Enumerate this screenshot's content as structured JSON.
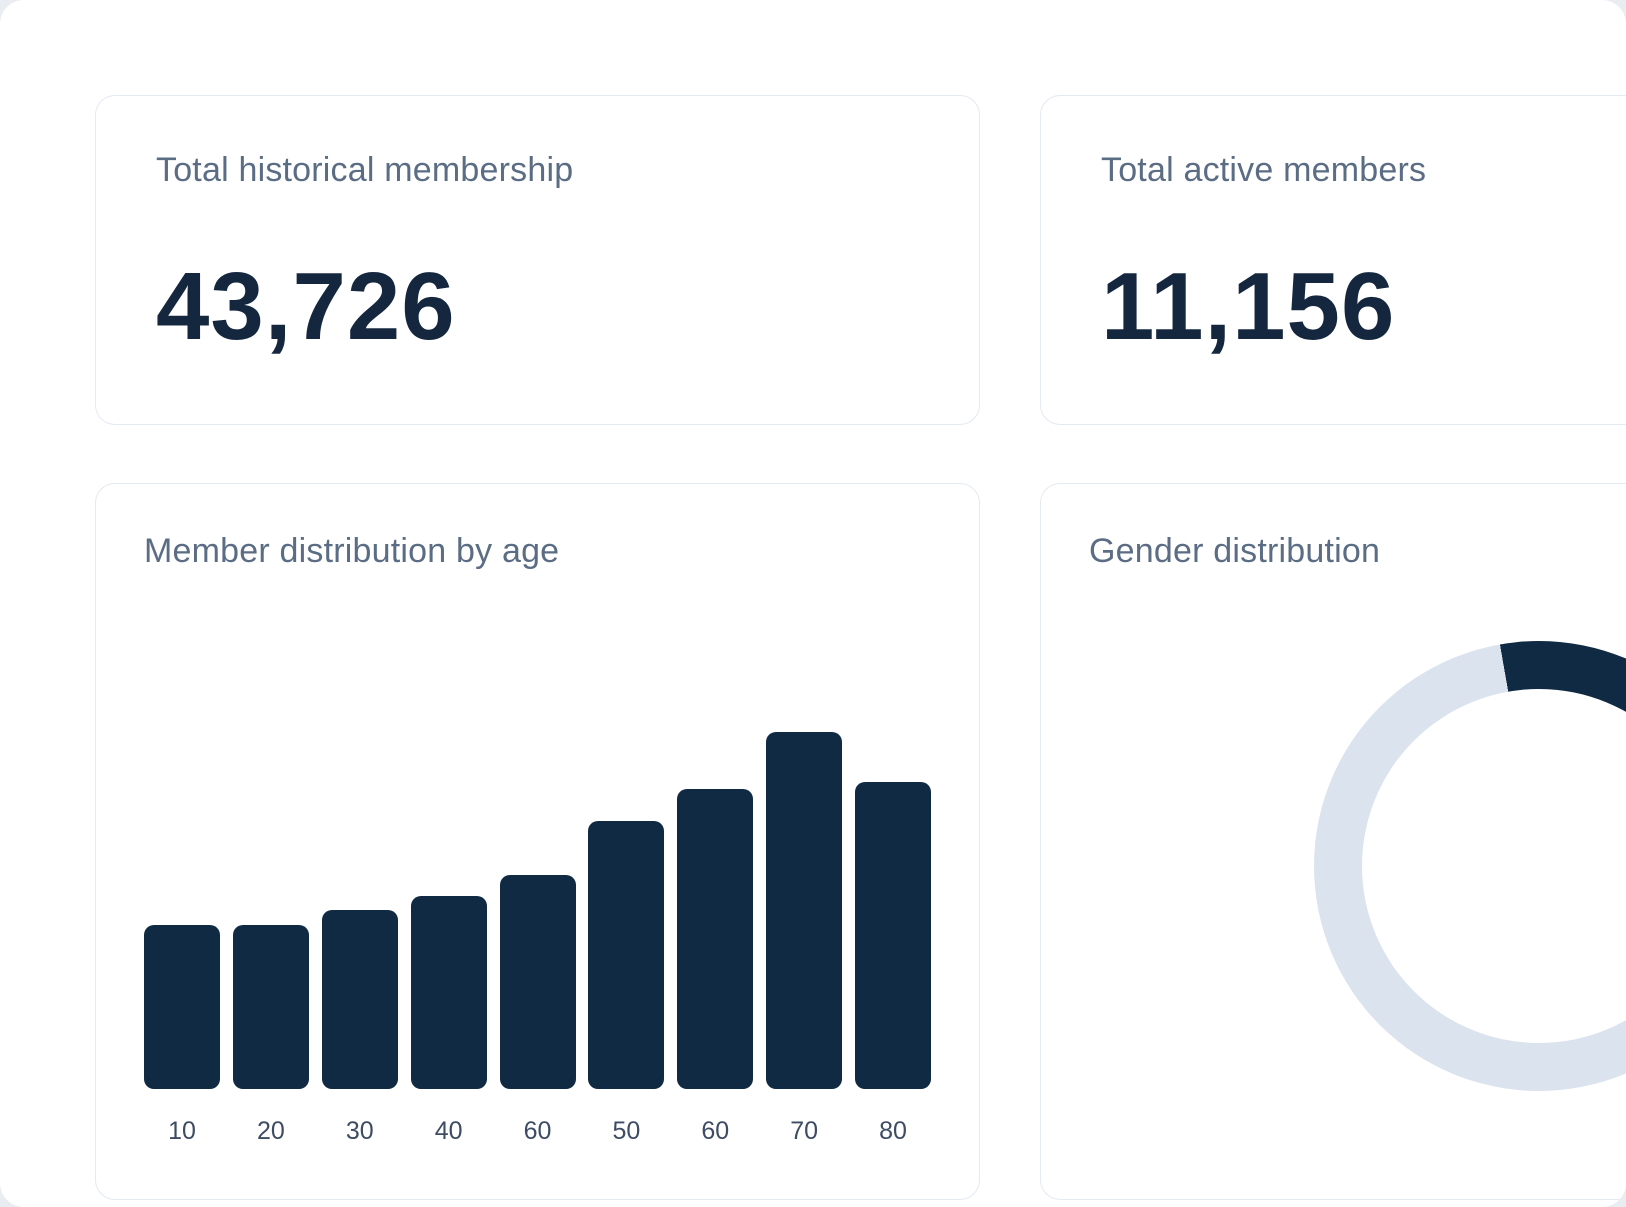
{
  "colors": {
    "navy": "#102a43",
    "title_text": "#5b6d84",
    "card_border": "#e4eaf1",
    "donut_track": "#dbe3ee",
    "axis_label": "#3e4c63"
  },
  "cards": {
    "historical": {
      "title": "Total historical membership",
      "value": "43,726"
    },
    "active": {
      "title": "Total active members",
      "value": "11,156"
    },
    "age": {
      "title": "Member distribution by age"
    },
    "gender": {
      "title": "Gender distribution"
    }
  },
  "chart_data": [
    {
      "type": "bar",
      "title": "Member distribution by age",
      "categories": [
        "10",
        "20",
        "30",
        "40",
        "60",
        "50",
        "60",
        "70",
        "80"
      ],
      "values": [
        46,
        46,
        50,
        54,
        60,
        75,
        84,
        100,
        86
      ],
      "ylim": [
        0,
        100
      ],
      "xlabel": "",
      "ylabel": "",
      "grid": false,
      "legend": "none",
      "bar_color": "#102a43",
      "notes": "no y-axis shown; values are relative heights as % of tallest bar"
    },
    {
      "type": "pie",
      "variant": "donut",
      "title": "Gender distribution",
      "series": [
        {
          "name": "dark-segment",
          "value": 25,
          "color": "#102a43"
        },
        {
          "name": "light-segment",
          "value": 75,
          "color": "#dbe3ee"
        }
      ],
      "legend": "none",
      "start_angle_deg": -10,
      "notes": "donut clipped at right edge of viewport; segment values estimated from visible arc"
    }
  ]
}
